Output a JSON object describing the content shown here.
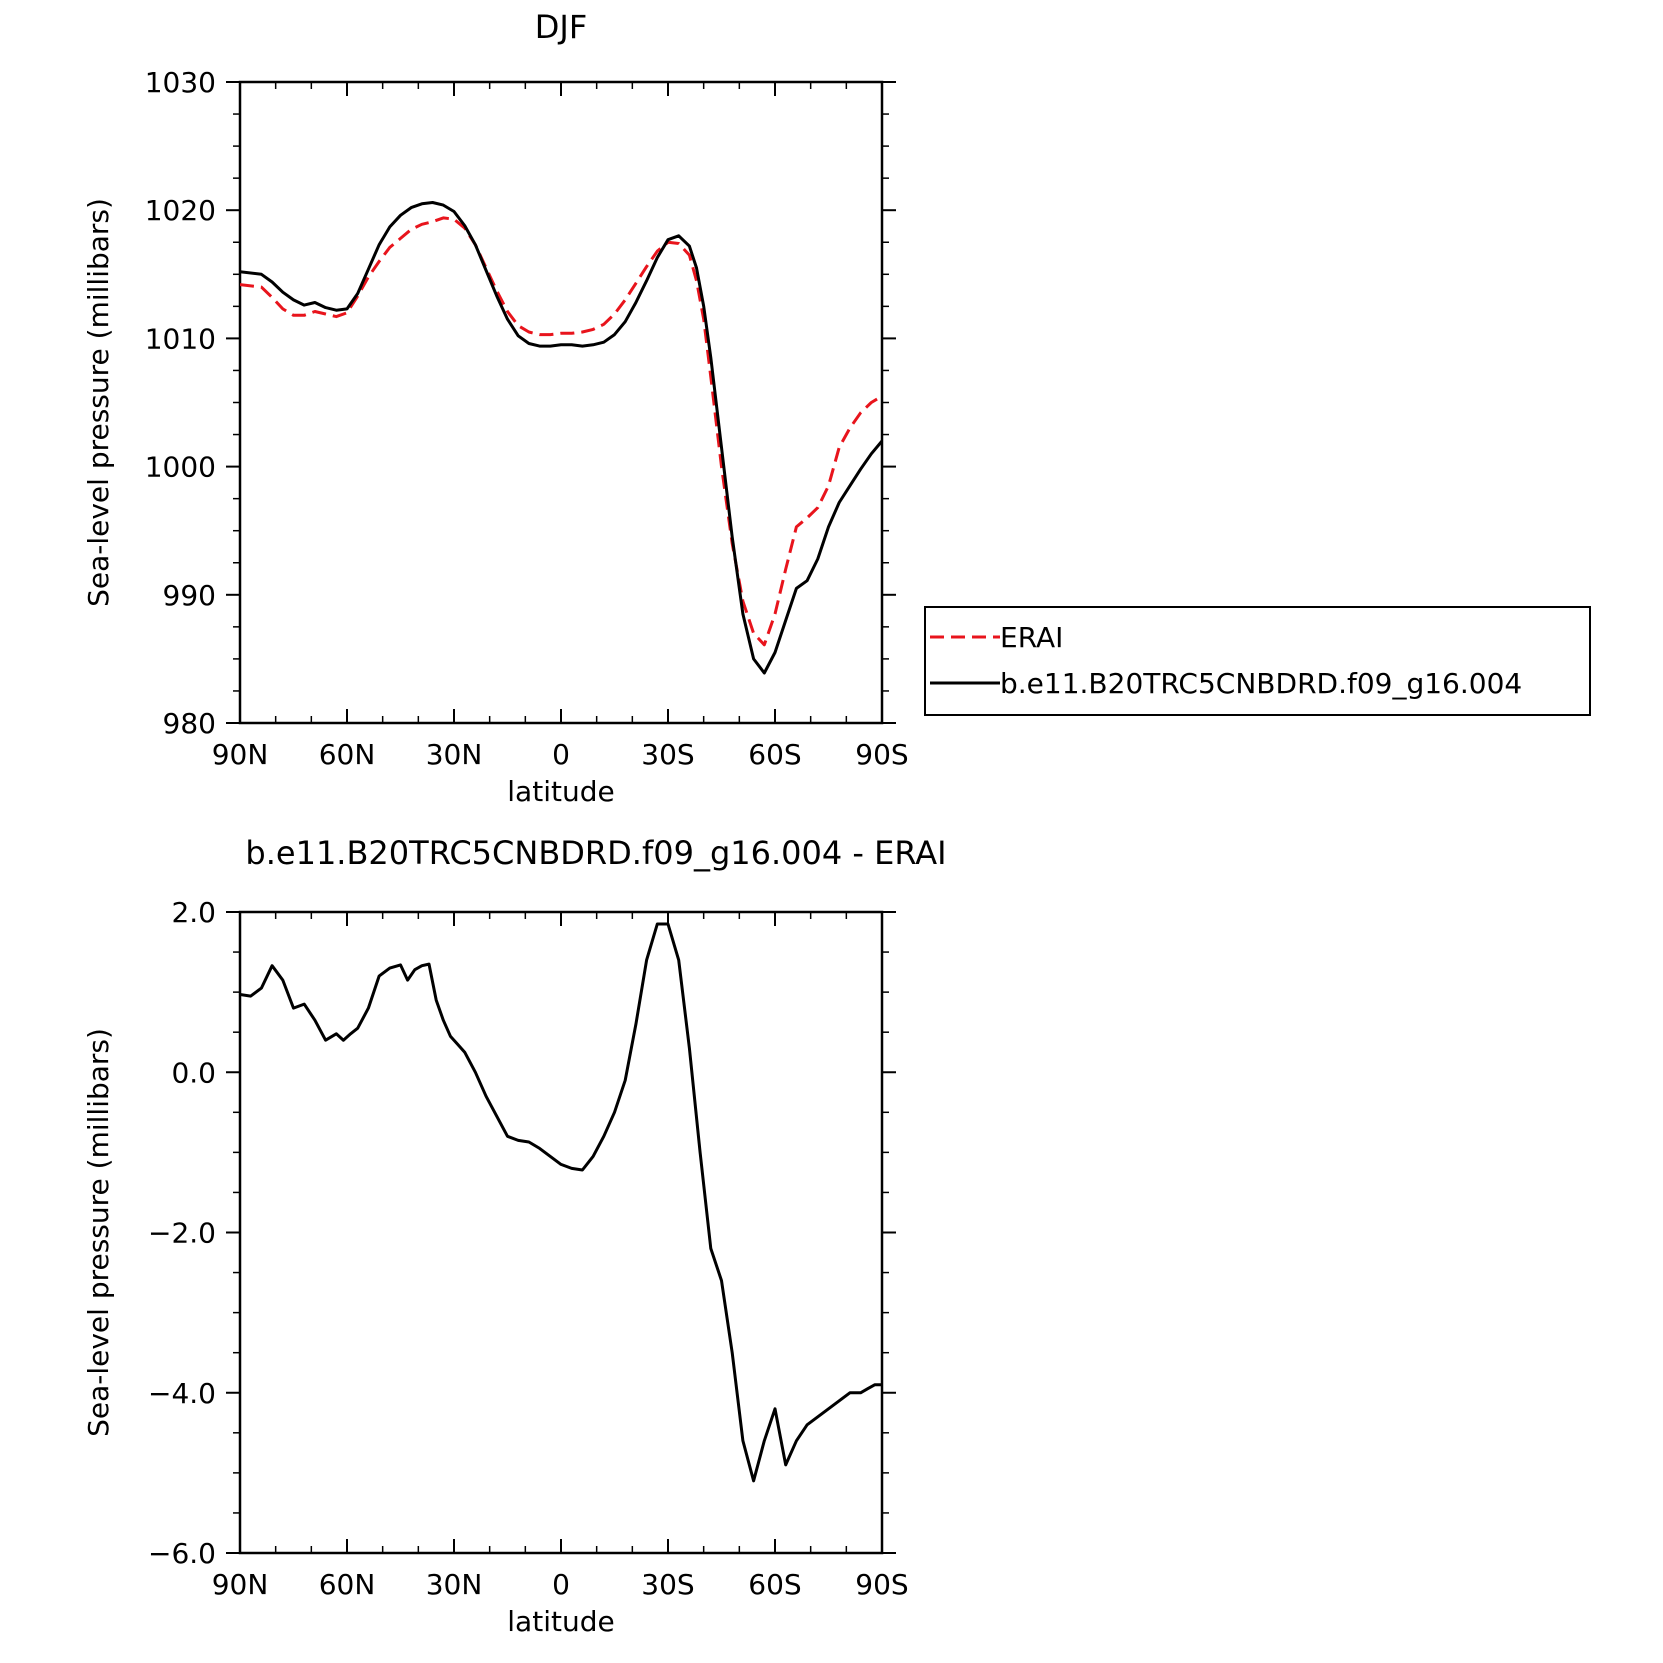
{
  "chart_data": [
    {
      "type": "line",
      "title": "DJF",
      "xlabel": "latitude",
      "ylabel": "Sea-level pressure (millibars)",
      "xlim": [
        90,
        -90
      ],
      "ylim": [
        980,
        1030
      ],
      "x_ticks": [
        {
          "value": 90,
          "label": "90N"
        },
        {
          "value": 60,
          "label": "60N"
        },
        {
          "value": 30,
          "label": "30N"
        },
        {
          "value": 0,
          "label": "0"
        },
        {
          "value": -30,
          "label": "30S"
        },
        {
          "value": -60,
          "label": "60S"
        },
        {
          "value": -90,
          "label": "90S"
        }
      ],
      "y_ticks": [
        {
          "value": 1030,
          "label": "1030"
        },
        {
          "value": 1020,
          "label": "1020"
        },
        {
          "value": 1010,
          "label": "1010"
        },
        {
          "value": 1000,
          "label": "1000"
        },
        {
          "value": 990,
          "label": "990"
        },
        {
          "value": 980,
          "label": "980"
        }
      ],
      "legend": {
        "placement": "right",
        "entries": [
          {
            "label": "ERAI",
            "color": "#e8141c",
            "dash": "dashed"
          },
          {
            "label": "b.e11.B20TRC5CNBDRD.f09_g16.004",
            "color": "#000000",
            "dash": "solid"
          }
        ]
      },
      "series": [
        {
          "name": "ERAI",
          "color": "#e8141c",
          "dash": "dashed",
          "x": [
            90,
            84,
            81,
            78,
            75,
            72,
            69,
            66,
            63,
            60,
            57,
            54,
            51,
            48,
            45,
            42,
            39,
            36,
            33,
            30,
            27,
            24,
            21,
            18,
            15,
            12,
            9,
            6,
            3,
            0,
            -3,
            -6,
            -9,
            -12,
            -15,
            -18,
            -21,
            -24,
            -27,
            -30,
            -33,
            -36,
            -38,
            -40,
            -42,
            -45,
            -48,
            -51,
            -54,
            -57,
            -60,
            -63,
            -66,
            -69,
            -72,
            -75,
            -78,
            -81,
            -84,
            -87,
            -90
          ],
          "y": [
            1014.2,
            1014.0,
            1013.2,
            1012.3,
            1011.8,
            1011.8,
            1012.1,
            1011.9,
            1011.7,
            1012.0,
            1013.3,
            1014.8,
            1016.0,
            1017.1,
            1017.8,
            1018.5,
            1018.9,
            1019.1,
            1019.4,
            1019.3,
            1018.6,
            1017.3,
            1015.5,
            1013.7,
            1012.1,
            1011.0,
            1010.5,
            1010.3,
            1010.3,
            1010.4,
            1010.4,
            1010.5,
            1010.7,
            1011.1,
            1011.9,
            1013.0,
            1014.3,
            1015.6,
            1016.8,
            1017.5,
            1017.4,
            1016.5,
            1014.5,
            1011.5,
            1007.0,
            1000.0,
            994.0,
            989.5,
            987.0,
            986.1,
            988.5,
            992.0,
            995.3,
            996.0,
            996.8,
            998.5,
            1001.5,
            1003.0,
            1004.2,
            1005.0,
            1005.5
          ]
        },
        {
          "name": "b.e11.B20TRC5CNBDRD.f09_g16.004",
          "color": "#000000",
          "dash": "solid",
          "x": [
            90,
            84,
            81,
            78,
            75,
            72,
            69,
            66,
            63,
            60,
            57,
            54,
            51,
            48,
            45,
            42,
            39,
            36,
            33,
            30,
            27,
            24,
            21,
            18,
            15,
            12,
            9,
            6,
            3,
            0,
            -3,
            -6,
            -9,
            -12,
            -15,
            -18,
            -21,
            -24,
            -27,
            -30,
            -33,
            -36,
            -38,
            -40,
            -42,
            -45,
            -48,
            -51,
            -54,
            -57,
            -60,
            -63,
            -66,
            -69,
            -72,
            -75,
            -78,
            -81,
            -84,
            -87,
            -90
          ],
          "y": [
            1015.2,
            1015.0,
            1014.4,
            1013.6,
            1013.0,
            1012.6,
            1012.8,
            1012.4,
            1012.2,
            1012.3,
            1013.5,
            1015.4,
            1017.3,
            1018.7,
            1019.6,
            1020.2,
            1020.5,
            1020.6,
            1020.4,
            1019.9,
            1018.8,
            1017.3,
            1015.3,
            1013.3,
            1011.5,
            1010.2,
            1009.6,
            1009.4,
            1009.4,
            1009.5,
            1009.5,
            1009.4,
            1009.5,
            1009.7,
            1010.3,
            1011.3,
            1012.8,
            1014.5,
            1016.3,
            1017.7,
            1018.0,
            1017.2,
            1015.5,
            1012.5,
            1008.5,
            1001.5,
            994.5,
            988.5,
            985.0,
            983.9,
            985.5,
            988.0,
            990.5,
            991.1,
            992.8,
            995.3,
            997.2,
            998.5,
            999.8,
            1001.0,
            1002.0
          ]
        }
      ]
    },
    {
      "type": "line",
      "title": "b.e11.B20TRC5CNBDRD.f09_g16.004 - ERAI",
      "xlabel": "latitude",
      "ylabel": "Sea-level pressure (millibars)",
      "xlim": [
        90,
        -90
      ],
      "ylim": [
        -6.0,
        2.0
      ],
      "x_ticks": [
        {
          "value": 90,
          "label": "90N"
        },
        {
          "value": 60,
          "label": "60N"
        },
        {
          "value": 30,
          "label": "30N"
        },
        {
          "value": 0,
          "label": "0"
        },
        {
          "value": -30,
          "label": "30S"
        },
        {
          "value": -60,
          "label": "60S"
        },
        {
          "value": -90,
          "label": "90S"
        }
      ],
      "y_ticks": [
        {
          "value": 2.0,
          "label": "2.0"
        },
        {
          "value": 0.0,
          "label": "0.0"
        },
        {
          "value": -2.0,
          "label": "−2.0"
        },
        {
          "value": -4.0,
          "label": "−4.0"
        },
        {
          "value": -6.0,
          "label": "−6.0"
        }
      ],
      "series": [
        {
          "name": "",
          "color": "#000000",
          "dash": "solid",
          "x": [
            90,
            87,
            84,
            81,
            78,
            75,
            72,
            69,
            66,
            63,
            61,
            59,
            57,
            54,
            51,
            48,
            45,
            43,
            41,
            39,
            37,
            35,
            33,
            31,
            29,
            27,
            24,
            21,
            18,
            15,
            12,
            9,
            6,
            3,
            0,
            -3,
            -6,
            -9,
            -12,
            -15,
            -18,
            -21,
            -24,
            -27,
            -30,
            -33,
            -36,
            -39,
            -42,
            -45,
            -48,
            -51,
            -54,
            -57,
            -60,
            -63,
            -66,
            -69,
            -72,
            -75,
            -78,
            -81,
            -84,
            -86,
            -88,
            -90
          ],
          "y": [
            0.97,
            0.95,
            1.05,
            1.33,
            1.15,
            0.8,
            0.85,
            0.65,
            0.4,
            0.48,
            0.4,
            0.48,
            0.55,
            0.8,
            1.2,
            1.3,
            1.34,
            1.15,
            1.28,
            1.33,
            1.35,
            0.9,
            0.65,
            0.45,
            0.35,
            0.25,
            0.0,
            -0.3,
            -0.55,
            -0.8,
            -0.85,
            -0.87,
            -0.95,
            -1.05,
            -1.15,
            -1.2,
            -1.22,
            -1.05,
            -0.8,
            -0.5,
            -0.1,
            0.6,
            1.4,
            1.85,
            1.85,
            1.4,
            0.3,
            -1.0,
            -2.2,
            -2.6,
            -3.5,
            -4.6,
            -5.1,
            -4.6,
            -4.2,
            -4.9,
            -4.6,
            -4.4,
            -4.3,
            -4.2,
            -4.1,
            -4.0,
            -4.0,
            -3.95,
            -3.9,
            -3.9
          ]
        }
      ]
    }
  ]
}
